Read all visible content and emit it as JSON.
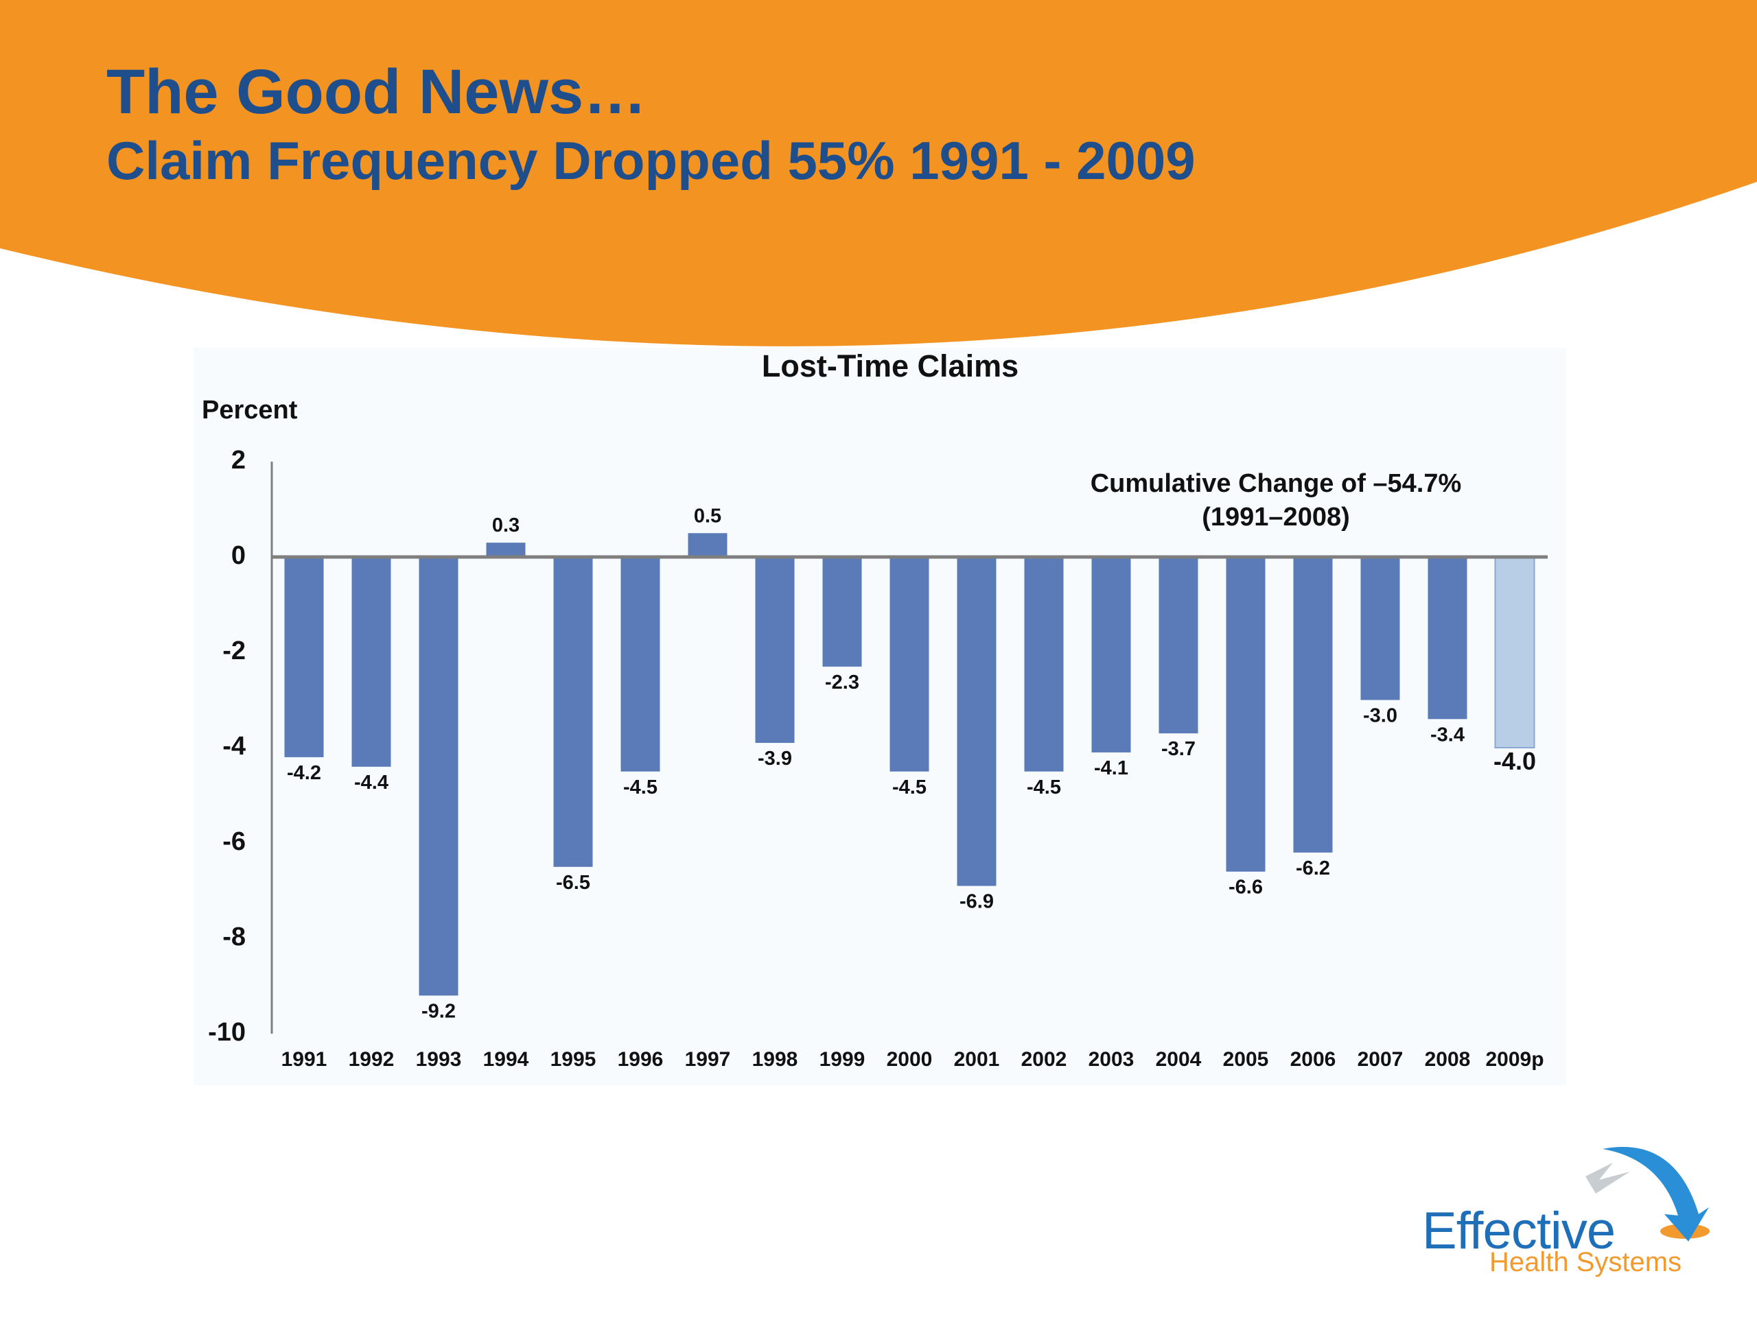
{
  "header": {
    "title": "The Good News…",
    "subtitle": "Claim Frequency Dropped 55% 1991 - 2009"
  },
  "colors": {
    "band": "#f39321",
    "heading": "#1f4e8c",
    "bar": "#5a7bb8",
    "bar_projected": "#b8cde6",
    "axis": "#7f7f7f"
  },
  "chart_data": {
    "type": "bar",
    "title": "Lost-Time Claims",
    "ylabel": "Percent",
    "ylim": [
      -10,
      2
    ],
    "yticks": [
      2,
      0,
      -2,
      -4,
      -6,
      -8,
      -10
    ],
    "categories": [
      "1991",
      "1992",
      "1993",
      "1994",
      "1995",
      "1996",
      "1997",
      "1998",
      "1999",
      "2000",
      "2001",
      "2002",
      "2003",
      "2004",
      "2005",
      "2006",
      "2007",
      "2008",
      "2009p"
    ],
    "values": [
      -4.2,
      -4.4,
      -9.2,
      0.3,
      -6.5,
      -4.5,
      0.5,
      -3.9,
      -2.3,
      -4.5,
      -6.9,
      -4.5,
      -4.1,
      -3.7,
      -6.6,
      -6.2,
      -3.0,
      -3.4,
      -4.0
    ],
    "labels": [
      "-4.2",
      "-4.4",
      "-9.2",
      "0.3",
      "-6.5",
      "-4.5",
      "0.5",
      "-3.9",
      "-2.3",
      "-4.5",
      "-6.9",
      "-4.5",
      "-4.1",
      "-3.7",
      "-6.6",
      "-6.2",
      "-3.0",
      "-3.4",
      "-4.0"
    ],
    "projected": [
      false,
      false,
      false,
      false,
      false,
      false,
      false,
      false,
      false,
      false,
      false,
      false,
      false,
      false,
      false,
      false,
      false,
      false,
      true
    ],
    "annotation": [
      "Cumulative Change of –54.7%",
      "(1991–2008)"
    ],
    "grid": false
  },
  "logo": {
    "name": "Effective",
    "tagline": "Health Systems",
    "icon": "arrow-swoosh-icon"
  }
}
